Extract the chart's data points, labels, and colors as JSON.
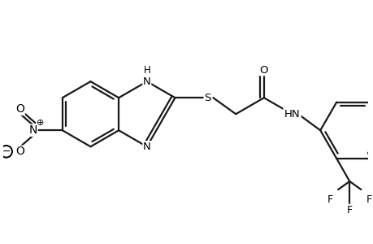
{
  "bg_color": "#ffffff",
  "line_color": "#1a1a1a",
  "line_width": 1.6,
  "figsize": [
    4.6,
    3.0
  ],
  "dpi": 100,
  "xlim": [
    0,
    9.2
  ],
  "ylim": [
    0,
    6.0
  ]
}
